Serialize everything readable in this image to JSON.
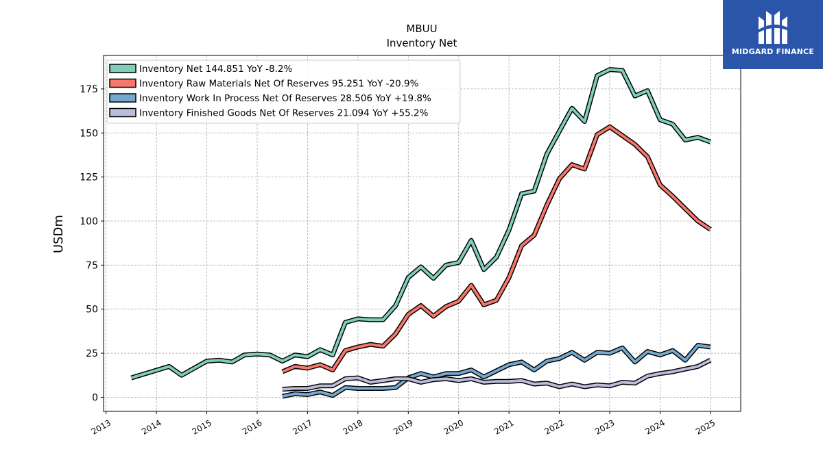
{
  "chart_data": {
    "type": "line",
    "title": "MBUU",
    "subtitle": "Inventory Net",
    "ylabel": "USDm",
    "xlabel": "",
    "ylim": [
      -8,
      194
    ],
    "xlim": [
      2012.95,
      2025.6
    ],
    "yticks": [
      0,
      25,
      50,
      75,
      100,
      125,
      150,
      175
    ],
    "xticks": [
      2013,
      2014,
      2015,
      2016,
      2017,
      2018,
      2019,
      2020,
      2021,
      2022,
      2023,
      2024,
      2025
    ],
    "grid": true,
    "legend_position": "top-left",
    "series": [
      {
        "name": "Inventory Net",
        "legend": "Inventory Net  144.851 YoY -8.2%",
        "color": "#7fcdbb",
        "points": [
          [
            2013.5,
            11.0
          ],
          [
            2014.25,
            17.5
          ],
          [
            2014.5,
            12.5
          ],
          [
            2015.0,
            20.5
          ],
          [
            2015.25,
            21.0
          ],
          [
            2015.5,
            20.0
          ],
          [
            2015.75,
            24.0
          ],
          [
            2016.0,
            24.5
          ],
          [
            2016.25,
            24.0
          ],
          [
            2016.5,
            20.5
          ],
          [
            2016.75,
            24.0
          ],
          [
            2017.0,
            23.0
          ],
          [
            2017.25,
            27.0
          ],
          [
            2017.5,
            24.0
          ],
          [
            2017.75,
            42.5
          ],
          [
            2018.0,
            44.5
          ],
          [
            2018.25,
            44.0
          ],
          [
            2018.5,
            44.0
          ],
          [
            2018.75,
            52.0
          ],
          [
            2019.0,
            68.0
          ],
          [
            2019.25,
            74.0
          ],
          [
            2019.5,
            67.5
          ],
          [
            2019.75,
            75.0
          ],
          [
            2020.0,
            76.5
          ],
          [
            2020.25,
            89.0
          ],
          [
            2020.5,
            72.5
          ],
          [
            2020.75,
            79.5
          ],
          [
            2021.0,
            95.0
          ],
          [
            2021.25,
            115.5
          ],
          [
            2021.5,
            117.0
          ],
          [
            2021.75,
            138.0
          ],
          [
            2022.0,
            151.0
          ],
          [
            2022.25,
            164.0
          ],
          [
            2022.5,
            156.5
          ],
          [
            2022.75,
            182.5
          ],
          [
            2023.0,
            186.0
          ],
          [
            2023.25,
            185.5
          ],
          [
            2023.5,
            171.0
          ],
          [
            2023.75,
            174.0
          ],
          [
            2024.0,
            157.5
          ],
          [
            2024.25,
            155.0
          ],
          [
            2024.5,
            146.0
          ],
          [
            2024.75,
            147.5
          ],
          [
            2025.0,
            144.9
          ]
        ]
      },
      {
        "name": "Inventory Raw Materials Net Of Reserves",
        "legend": "Inventory Raw Materials Net Of Reserves  95.251 YoY -20.9%",
        "color": "#f8776b",
        "points": [
          [
            2016.5,
            14.5
          ],
          [
            2016.75,
            17.5
          ],
          [
            2017.0,
            16.5
          ],
          [
            2017.25,
            18.5
          ],
          [
            2017.5,
            15.5
          ],
          [
            2017.75,
            26.5
          ],
          [
            2018.0,
            28.5
          ],
          [
            2018.25,
            30.0
          ],
          [
            2018.5,
            29.0
          ],
          [
            2018.75,
            36.0
          ],
          [
            2019.0,
            47.0
          ],
          [
            2019.25,
            52.0
          ],
          [
            2019.5,
            46.0
          ],
          [
            2019.75,
            51.5
          ],
          [
            2020.0,
            54.5
          ],
          [
            2020.25,
            63.5
          ],
          [
            2020.5,
            52.5
          ],
          [
            2020.75,
            55.0
          ],
          [
            2021.0,
            68.0
          ],
          [
            2021.25,
            86.0
          ],
          [
            2021.5,
            92.0
          ],
          [
            2021.75,
            109.0
          ],
          [
            2022.0,
            124.0
          ],
          [
            2022.25,
            132.0
          ],
          [
            2022.5,
            129.5
          ],
          [
            2022.75,
            149.0
          ],
          [
            2023.0,
            153.5
          ],
          [
            2023.25,
            148.5
          ],
          [
            2023.5,
            143.5
          ],
          [
            2023.75,
            136.5
          ],
          [
            2024.0,
            120.5
          ],
          [
            2024.25,
            114.0
          ],
          [
            2024.5,
            107.0
          ],
          [
            2024.75,
            100.0
          ],
          [
            2025.0,
            95.25
          ]
        ]
      },
      {
        "name": "Inventory Work In Process Net Of Reserves",
        "legend": "Inventory Work In Process Net Of Reserves  28.506 YoY +19.8%",
        "color": "#74a9cf",
        "points": [
          [
            2016.5,
            0.5
          ],
          [
            2016.75,
            2.0
          ],
          [
            2017.0,
            1.5
          ],
          [
            2017.25,
            3.0
          ],
          [
            2017.5,
            1.0
          ],
          [
            2017.75,
            5.5
          ],
          [
            2018.0,
            5.0
          ],
          [
            2018.25,
            5.0
          ],
          [
            2018.5,
            5.0
          ],
          [
            2018.75,
            5.5
          ],
          [
            2019.0,
            11.0
          ],
          [
            2019.25,
            13.5
          ],
          [
            2019.5,
            11.5
          ],
          [
            2019.75,
            13.5
          ],
          [
            2020.0,
            13.5
          ],
          [
            2020.25,
            15.5
          ],
          [
            2020.5,
            11.5
          ],
          [
            2020.75,
            15.0
          ],
          [
            2021.0,
            18.5
          ],
          [
            2021.25,
            20.0
          ],
          [
            2021.5,
            15.5
          ],
          [
            2021.75,
            20.5
          ],
          [
            2022.0,
            22.0
          ],
          [
            2022.25,
            25.5
          ],
          [
            2022.5,
            21.0
          ],
          [
            2022.75,
            25.5
          ],
          [
            2023.0,
            25.0
          ],
          [
            2023.25,
            28.0
          ],
          [
            2023.5,
            20.0
          ],
          [
            2023.75,
            26.0
          ],
          [
            2024.0,
            24.0
          ],
          [
            2024.25,
            26.5
          ],
          [
            2024.5,
            21.0
          ],
          [
            2024.75,
            29.5
          ],
          [
            2025.0,
            28.5
          ]
        ]
      },
      {
        "name": "Inventory Finished Goods Net Of Reserves",
        "legend": "Inventory Finished Goods Net Of Reserves  21.094 YoY +55.2%",
        "color": "#bcbddc",
        "points": [
          [
            2016.5,
            4.5
          ],
          [
            2016.75,
            5.0
          ],
          [
            2017.0,
            5.0
          ],
          [
            2017.25,
            6.5
          ],
          [
            2017.5,
            6.5
          ],
          [
            2017.75,
            10.5
          ],
          [
            2018.0,
            11.0
          ],
          [
            2018.25,
            8.5
          ],
          [
            2018.5,
            9.5
          ],
          [
            2018.75,
            10.5
          ],
          [
            2019.0,
            10.5
          ],
          [
            2019.25,
            8.5
          ],
          [
            2019.5,
            10.0
          ],
          [
            2019.75,
            10.5
          ],
          [
            2020.0,
            9.5
          ],
          [
            2020.25,
            10.5
          ],
          [
            2020.5,
            8.5
          ],
          [
            2020.75,
            9.0
          ],
          [
            2021.0,
            9.0
          ],
          [
            2021.25,
            9.5
          ],
          [
            2021.5,
            7.5
          ],
          [
            2021.75,
            8.0
          ],
          [
            2022.0,
            6.0
          ],
          [
            2022.25,
            7.5
          ],
          [
            2022.5,
            6.0
          ],
          [
            2022.75,
            7.0
          ],
          [
            2023.0,
            6.5
          ],
          [
            2023.25,
            8.5
          ],
          [
            2023.5,
            8.0
          ],
          [
            2023.75,
            12.0
          ],
          [
            2024.0,
            13.5
          ],
          [
            2024.25,
            14.5
          ],
          [
            2024.5,
            16.0
          ],
          [
            2024.75,
            17.5
          ],
          [
            2025.0,
            21.1
          ]
        ]
      }
    ]
  },
  "brand": {
    "name": "MIDGARD FINANCE",
    "color": "#2a55a8"
  }
}
